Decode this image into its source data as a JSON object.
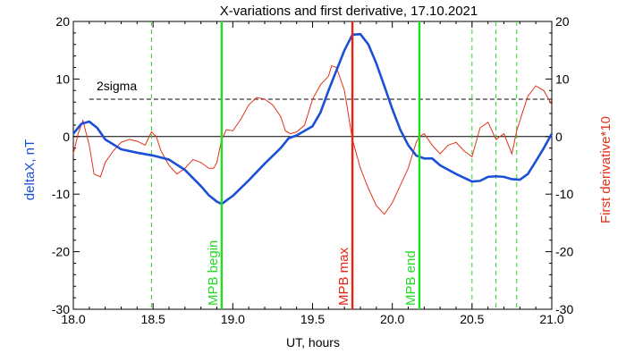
{
  "chart_data": {
    "type": "line",
    "title": "X-variations and first derivative, 17.10.2021",
    "xlabel": "UT, hours",
    "ylabel_left": "deltaX, nT",
    "ylabel_right": "First derivative*10",
    "xlim": [
      18.0,
      21.0
    ],
    "ylim": [
      -30,
      20
    ],
    "x_ticks": [
      "18.0",
      "18.5",
      "19.0",
      "19.5",
      "20.0",
      "20.5",
      "21.0"
    ],
    "y_ticks": [
      "-30",
      "-20",
      "-10",
      "0",
      "10",
      "20"
    ],
    "grid": false,
    "colors": {
      "deltaX": "#1a4fd6",
      "derivative": "#e0331a",
      "green": "#22dd22",
      "red": "#ee2211"
    },
    "sigma": {
      "label": "2sigma",
      "value": 6.5
    },
    "markers": [
      {
        "label": "MPB begin",
        "x": 18.93,
        "color": "green"
      },
      {
        "label": "MPB max",
        "x": 19.75,
        "color": "red"
      },
      {
        "label": "MPB end",
        "x": 20.17,
        "color": "green"
      }
    ],
    "dashed_markers": [
      18.49,
      20.5,
      20.65,
      20.78
    ],
    "series": [
      {
        "key": "deltaX",
        "x": [
          18.0,
          18.05,
          18.1,
          18.15,
          18.2,
          18.3,
          18.4,
          18.5,
          18.6,
          18.7,
          18.8,
          18.85,
          18.9,
          18.93,
          18.96,
          19.0,
          19.1,
          19.2,
          19.3,
          19.35,
          19.4,
          19.5,
          19.55,
          19.6,
          19.65,
          19.7,
          19.75,
          19.8,
          19.85,
          19.9,
          19.95,
          20.0,
          20.05,
          20.1,
          20.15,
          20.2,
          20.25,
          20.3,
          20.4,
          20.5,
          20.55,
          20.6,
          20.65,
          20.7,
          20.75,
          20.8,
          20.85,
          20.9,
          20.95,
          21.0
        ],
        "values": [
          0.5,
          2.2,
          2.6,
          1.5,
          -0.5,
          -2.2,
          -2.8,
          -3.3,
          -4.0,
          -5.8,
          -8.6,
          -10.2,
          -11.3,
          -11.7,
          -11.1,
          -10.3,
          -7.6,
          -4.7,
          -2.0,
          -0.3,
          0.2,
          1.8,
          4.2,
          8.0,
          11.5,
          15.0,
          17.7,
          17.8,
          16.0,
          12.7,
          8.8,
          4.8,
          1.2,
          -1.5,
          -3.3,
          -3.8,
          -3.8,
          -5.0,
          -6.5,
          -7.8,
          -7.7,
          -7.0,
          -6.9,
          -7.0,
          -7.4,
          -7.5,
          -6.5,
          -4.3,
          -2.0,
          0.5
        ]
      },
      {
        "key": "derivative",
        "x": [
          18.0,
          18.03,
          18.06,
          18.1,
          18.13,
          18.17,
          18.2,
          18.25,
          18.3,
          18.35,
          18.4,
          18.45,
          18.49,
          18.52,
          18.55,
          18.6,
          18.65,
          18.7,
          18.75,
          18.8,
          18.85,
          18.88,
          18.9,
          18.93,
          18.96,
          19.0,
          19.05,
          19.1,
          19.15,
          19.2,
          19.25,
          19.3,
          19.33,
          19.36,
          19.4,
          19.45,
          19.5,
          19.55,
          19.6,
          19.62,
          19.65,
          19.7,
          19.75,
          19.8,
          19.85,
          19.9,
          19.95,
          20.0,
          20.05,
          20.1,
          20.15,
          20.17,
          20.2,
          20.25,
          20.3,
          20.35,
          20.4,
          20.45,
          20.5,
          20.55,
          20.6,
          20.65,
          20.7,
          20.75,
          20.78,
          20.82,
          20.85,
          20.9,
          20.95,
          21.0
        ],
        "values": [
          -3.0,
          0.5,
          2.8,
          -1.5,
          -6.5,
          -7.0,
          -4.5,
          -2.5,
          -1.0,
          -0.5,
          -0.8,
          -1.5,
          0.8,
          0.0,
          -2.5,
          -5.0,
          -6.5,
          -5.5,
          -4.0,
          -4.5,
          -5.5,
          -5.5,
          -4.5,
          -0.5,
          1.2,
          1.0,
          3.0,
          5.5,
          6.8,
          6.5,
          5.5,
          3.5,
          1.0,
          0.5,
          0.8,
          2.0,
          6.5,
          9.0,
          10.5,
          12.3,
          12.0,
          8.0,
          -0.5,
          -5.5,
          -9.0,
          -12.0,
          -13.5,
          -11.5,
          -8.5,
          -5.5,
          -1.0,
          0.0,
          0.5,
          -1.5,
          -3.0,
          -1.5,
          -1.0,
          -2.5,
          -3.5,
          1.5,
          2.5,
          -0.5,
          0.5,
          -3.0,
          1.0,
          4.5,
          7.0,
          8.8,
          8.0,
          5.5
        ]
      }
    ]
  }
}
